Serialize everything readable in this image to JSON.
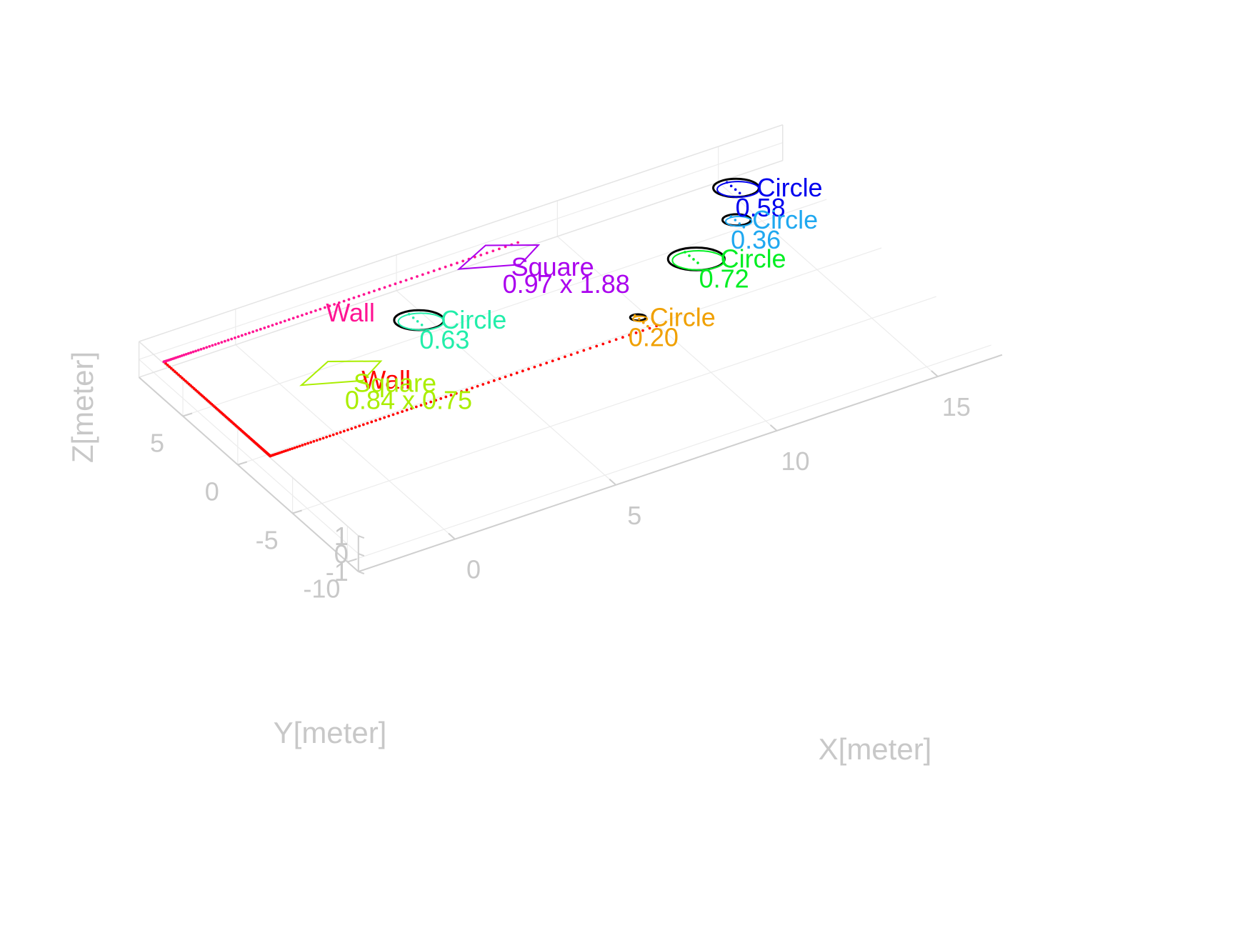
{
  "chart_data": {
    "type": "scatter",
    "projection": "3d",
    "grid": true,
    "axes": {
      "x": {
        "label": "X[meter]",
        "ticks": [
          0,
          5,
          10,
          15
        ],
        "range": [
          -3,
          17
        ]
      },
      "y": {
        "label": "Y[meter]",
        "ticks": [
          -10,
          -5,
          0,
          5
        ],
        "range": [
          -11,
          9
        ]
      },
      "z": {
        "label": "Z[meter]",
        "ticks": [
          -1,
          0,
          1
        ],
        "range": [
          -1,
          1
        ]
      }
    },
    "walls": [
      {
        "label": "Wall",
        "color": "#ff0000",
        "x": [
          -2.5,
          9.5
        ],
        "y": [
          -1.5,
          -1.5
        ]
      },
      {
        "label": "Wall",
        "color": "#ff0000",
        "x": [
          -2.5,
          -2.5
        ],
        "y": [
          -1.5,
          8.2
        ]
      },
      {
        "label": "Wall",
        "color": "#ff1493",
        "x": [
          -2.5,
          8.5
        ],
        "y": [
          8.2,
          8.2
        ]
      }
    ],
    "objects": [
      {
        "shape": "Circle",
        "size": "0.58",
        "x": 14.8,
        "y": 6.8,
        "r": 0.58,
        "color": "#0000ee"
      },
      {
        "shape": "Circle",
        "size": "0.36",
        "x": 14.0,
        "y": 4.4,
        "r": 0.36,
        "color": "#1fa8f0"
      },
      {
        "shape": "Circle",
        "size": "0.72",
        "x": 12.1,
        "y": 2.5,
        "r": 0.72,
        "color": "#00ee22"
      },
      {
        "shape": "Circle",
        "size": "0.63",
        "x": 4.3,
        "y": 4.9,
        "r": 0.63,
        "color": "#22eeaa"
      },
      {
        "shape": "Circle",
        "size": "0.20",
        "x": 9.3,
        "y": -0.4,
        "r": 0.2,
        "color": "#f0a000"
      },
      {
        "shape": "Square",
        "size": "0.97 x 1.88",
        "x": 7.7,
        "y": 7.9,
        "w": 0.97,
        "h": 1.88,
        "color": "#aa00ee"
      },
      {
        "shape": "Square",
        "size": "0.84 x 0.75",
        "x": 1.2,
        "y": 3.2,
        "w": 0.84,
        "h": 0.75,
        "color": "#aaee00"
      }
    ]
  }
}
